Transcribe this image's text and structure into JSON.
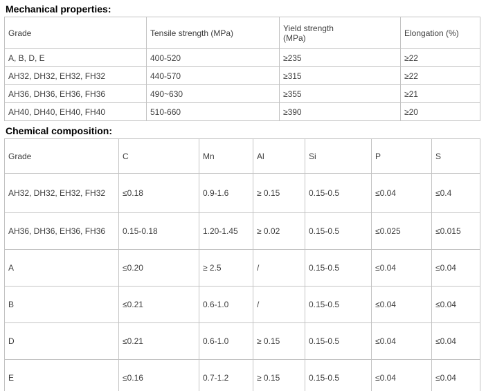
{
  "colors": {
    "border": "#c3c3c3",
    "text": "#3d3d3d",
    "title": "#000000",
    "background": "#ffffff"
  },
  "sections": {
    "mechanical": {
      "title": "Mechanical properties:",
      "headers": [
        "Grade",
        "Tensile strength (MPa)",
        "Yield strength\n(MPa)",
        "Elongation (%)"
      ],
      "rows": [
        [
          "A, B, D, E",
          "400-520",
          "≥235",
          "≥22"
        ],
        [
          "AH32, DH32, EH32, FH32",
          "440-570",
          "≥315",
          "≥22"
        ],
        [
          "AH36, DH36, EH36, FH36",
          "490~630",
          "≥355",
          "≥21"
        ],
        [
          "AH40, DH40, EH40, FH40",
          "510-660",
          "≥390",
          "≥20"
        ]
      ]
    },
    "chemical": {
      "title": "Chemical composition:",
      "headers": [
        "Grade",
        "C",
        "Mn",
        "Al",
        "Si",
        "P",
        "S"
      ],
      "rows": [
        [
          "AH32, DH32, EH32, FH32",
          "≤0.18",
          "0.9-1.6",
          "≥ 0.15",
          "0.15-0.5",
          "≤0.04",
          "≤0.4"
        ],
        [
          "AH36, DH36, EH36, FH36",
          "0.15-0.18",
          "1.20-1.45",
          "≥ 0.02",
          "0.15-0.5",
          "≤0.025",
          "≤0.015"
        ],
        [
          "A",
          "≤0.20",
          "≥ 2.5",
          "/",
          "0.15-0.5",
          "≤0.04",
          "≤0.04"
        ],
        [
          "B",
          "≤0.21",
          "0.6-1.0",
          "/",
          "0.15-0.5",
          "≤0.04",
          "≤0.04"
        ],
        [
          "D",
          "≤0.21",
          "0.6-1.0",
          "≥ 0.15",
          "0.15-0.5",
          "≤0.04",
          "≤0.04"
        ],
        [
          "E",
          "≤0.16",
          "0.7-1.2",
          "≥ 0.15",
          "0.15-0.5",
          "≤0.04",
          "≤0.04"
        ]
      ]
    }
  }
}
